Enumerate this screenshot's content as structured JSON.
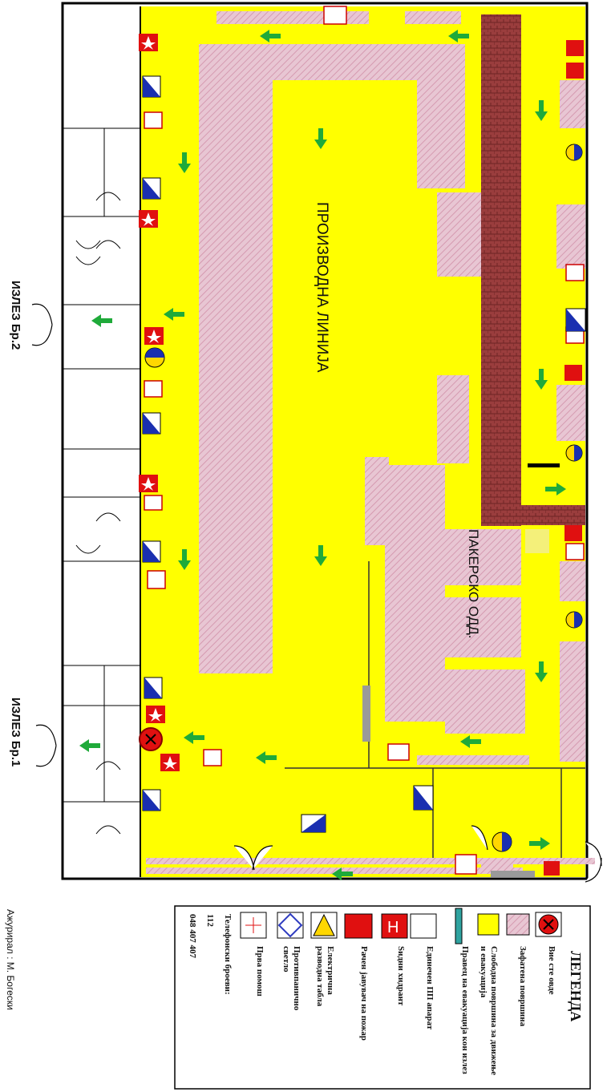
{
  "labels": {
    "production_line": "ПРОИЗВОДНА ЛИНИЈА",
    "packing_dept": "ПАКЕРСКО ОДД.",
    "exit_2": "ИЗЛЕЗ Бр.2",
    "exit_1": "ИЗЛЕЗ Бр.1",
    "updated_by": "Ажурирал : М. Богески"
  },
  "legend": {
    "title": "ЛЕГЕНДА",
    "items": [
      {
        "icon": "you-are-here-icon",
        "label": "Вие сте овде",
        "color": "#d0021b"
      },
      {
        "icon": "occupied-area-icon",
        "label": "Зафатена површина",
        "color": "#e7c7d4"
      },
      {
        "icon": "free-area-icon",
        "label": "Слободна површина за движење и евакуација",
        "color": "#ffff00"
      },
      {
        "icon": "evacuation-direction-icon",
        "label": "Правец на евакуација кон излез",
        "color": "#00b050"
      },
      {
        "icon": "fire-extinguisher-icon",
        "label": "Единечен ПП апарат",
        "color": "#ffffff"
      },
      {
        "icon": "hydrant-icon",
        "label": "Sидни хидрант",
        "color": "#d0021b"
      },
      {
        "icon": "fire-alarm-icon",
        "label": "Рачен јавувач на пожар",
        "color": "#d0021b"
      },
      {
        "icon": "electric-panel-icon",
        "label": "Електрична разводна табла",
        "color": "#ffd700"
      },
      {
        "icon": "panic-light-icon",
        "label": "Противпанично светло",
        "color": "#2f3cc0"
      },
      {
        "icon": "first-aid-icon",
        "label": "Прва помош",
        "color": "#d0021b"
      }
    ],
    "phones_label": "Телефонски броеви:",
    "phone_1": "112",
    "phone_2": "048 407 407"
  },
  "colors": {
    "free": "#ffff00",
    "occupied": "#e6c3d0",
    "conveyor": "#8b3a3a",
    "arrow": "#1faa3a",
    "wall": "#000000",
    "panel_blue": "#1a2fb0"
  }
}
